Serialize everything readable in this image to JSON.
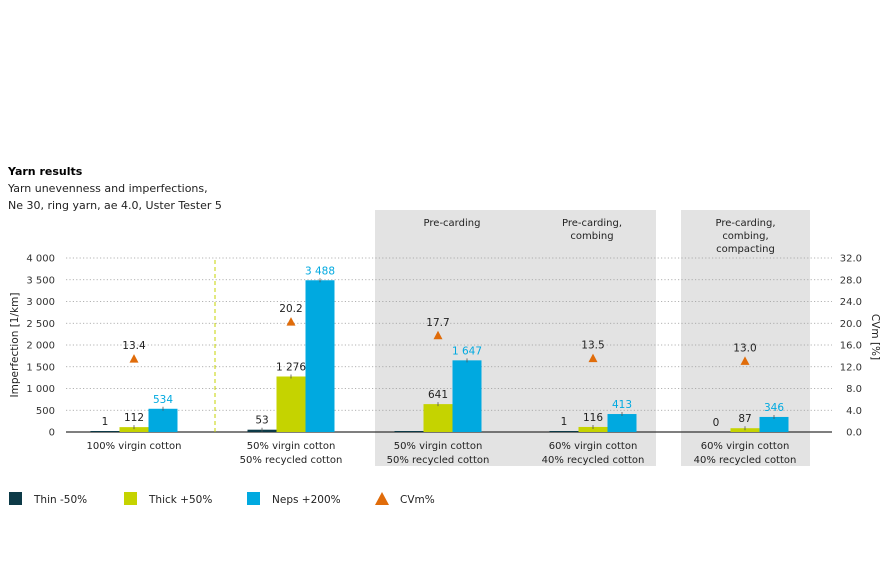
{
  "chart_data": {
    "type": "bar",
    "title": "Yarn results",
    "subtitle_lines": [
      "Yarn unevenness and imperfections,",
      "Ne 30, ring yarn, ae 4.0, Uster Tester 5"
    ],
    "ylabel_left": "Imperfection [1/km]",
    "ylabel_right": "CVm [%]",
    "ylim_left": [
      0,
      4000
    ],
    "ylim_right": [
      0,
      32
    ],
    "yticks_left": [
      "0",
      "500",
      "1 000",
      "1 500",
      "2 000",
      "2 500",
      "3 000",
      "3 500",
      "4 000"
    ],
    "yticks_right": [
      "0.0",
      "4.0",
      "8.0",
      "12.0",
      "16.0",
      "20.0",
      "24.0",
      "28.0",
      "32.0"
    ],
    "grid": "horizontal dotted",
    "legend_position": "bottom",
    "categories": [
      [
        "100% virgin cotton"
      ],
      [
        "50% virgin cotton",
        "50% recycled cotton"
      ],
      [
        "50% virgin cotton",
        "50% recycled cotton"
      ],
      [
        "60% virgin cotton",
        "40% recycled cotton"
      ],
      [
        "60% virgin cotton",
        "40% recycled cotton"
      ]
    ],
    "panels": [
      [],
      [],
      [
        "Pre-carding"
      ],
      [
        "Pre-carding,",
        "combing"
      ],
      [
        "Pre-carding,",
        "combing,",
        "compacting"
      ]
    ],
    "series": [
      {
        "name": "Thin -50%",
        "axis": "left",
        "values": [
          1,
          53,
          5,
          1,
          0
        ],
        "labels": [
          "1",
          "53",
          "",
          "1",
          "0"
        ],
        "color": "#0d3a47"
      },
      {
        "name": "Thick +50%",
        "axis": "left",
        "values": [
          112,
          1276,
          641,
          116,
          87
        ],
        "labels": [
          "112",
          "1 276",
          "641",
          "116",
          "87"
        ],
        "color": "#c5d300"
      },
      {
        "name": "Neps +200%",
        "axis": "left",
        "values": [
          534,
          3488,
          1647,
          413,
          346
        ],
        "labels": [
          "534",
          "3 488",
          "1 647",
          "413",
          "346"
        ],
        "color": "#00a9e0"
      },
      {
        "name": "CVm%",
        "axis": "right",
        "type": "marker",
        "values": [
          13.4,
          20.2,
          17.7,
          13.5,
          13.0
        ],
        "labels": [
          "13.4",
          "20.2",
          "17.7",
          "13.5",
          "13.0"
        ],
        "color": "#e06c0a"
      }
    ],
    "colors": {
      "panel_bg": "#e3e3e3",
      "grid": "#9a9a9a",
      "divider": "#c5d300",
      "neps_label": "#00a9e0",
      "axis": "#333333"
    }
  }
}
